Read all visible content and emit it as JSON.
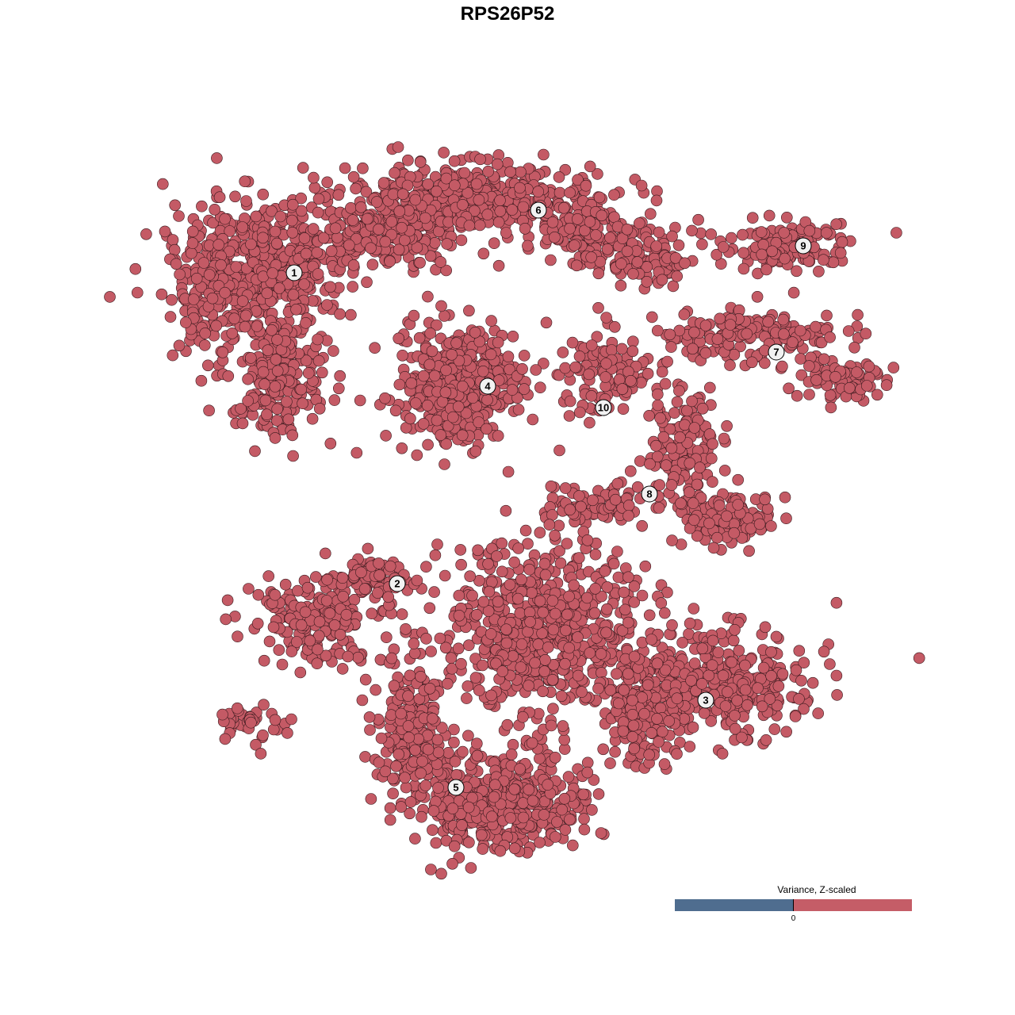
{
  "chart_data": {
    "type": "scatter",
    "title": "RPS26P52",
    "xlabel": "",
    "ylabel": "",
    "grid": false,
    "point_color": "#c45a65",
    "point_outline": "#3a1a1e",
    "clusters": [
      {
        "label": "1",
        "x": -26.9,
        "y": 29.6
      },
      {
        "label": "2",
        "x": -13.9,
        "y": -9.6
      },
      {
        "label": "3",
        "x": 25.0,
        "y": -24.3
      },
      {
        "label": "4",
        "x": -2.5,
        "y": 15.3
      },
      {
        "label": "5",
        "x": -6.5,
        "y": -35.3
      },
      {
        "label": "6",
        "x": 3.9,
        "y": 37.5
      },
      {
        "label": "7",
        "x": 33.9,
        "y": 19.6
      },
      {
        "label": "8",
        "x": 17.9,
        "y": 1.7
      },
      {
        "label": "9",
        "x": 37.3,
        "y": 33.0
      },
      {
        "label": "10",
        "x": 12.1,
        "y": 12.6
      }
    ],
    "legend": {
      "title": "Variance, Z-scaled",
      "tick": "0",
      "low_color": "#4f6d8f",
      "high_color": "#c55d67",
      "placement": "bottom-right"
    }
  }
}
